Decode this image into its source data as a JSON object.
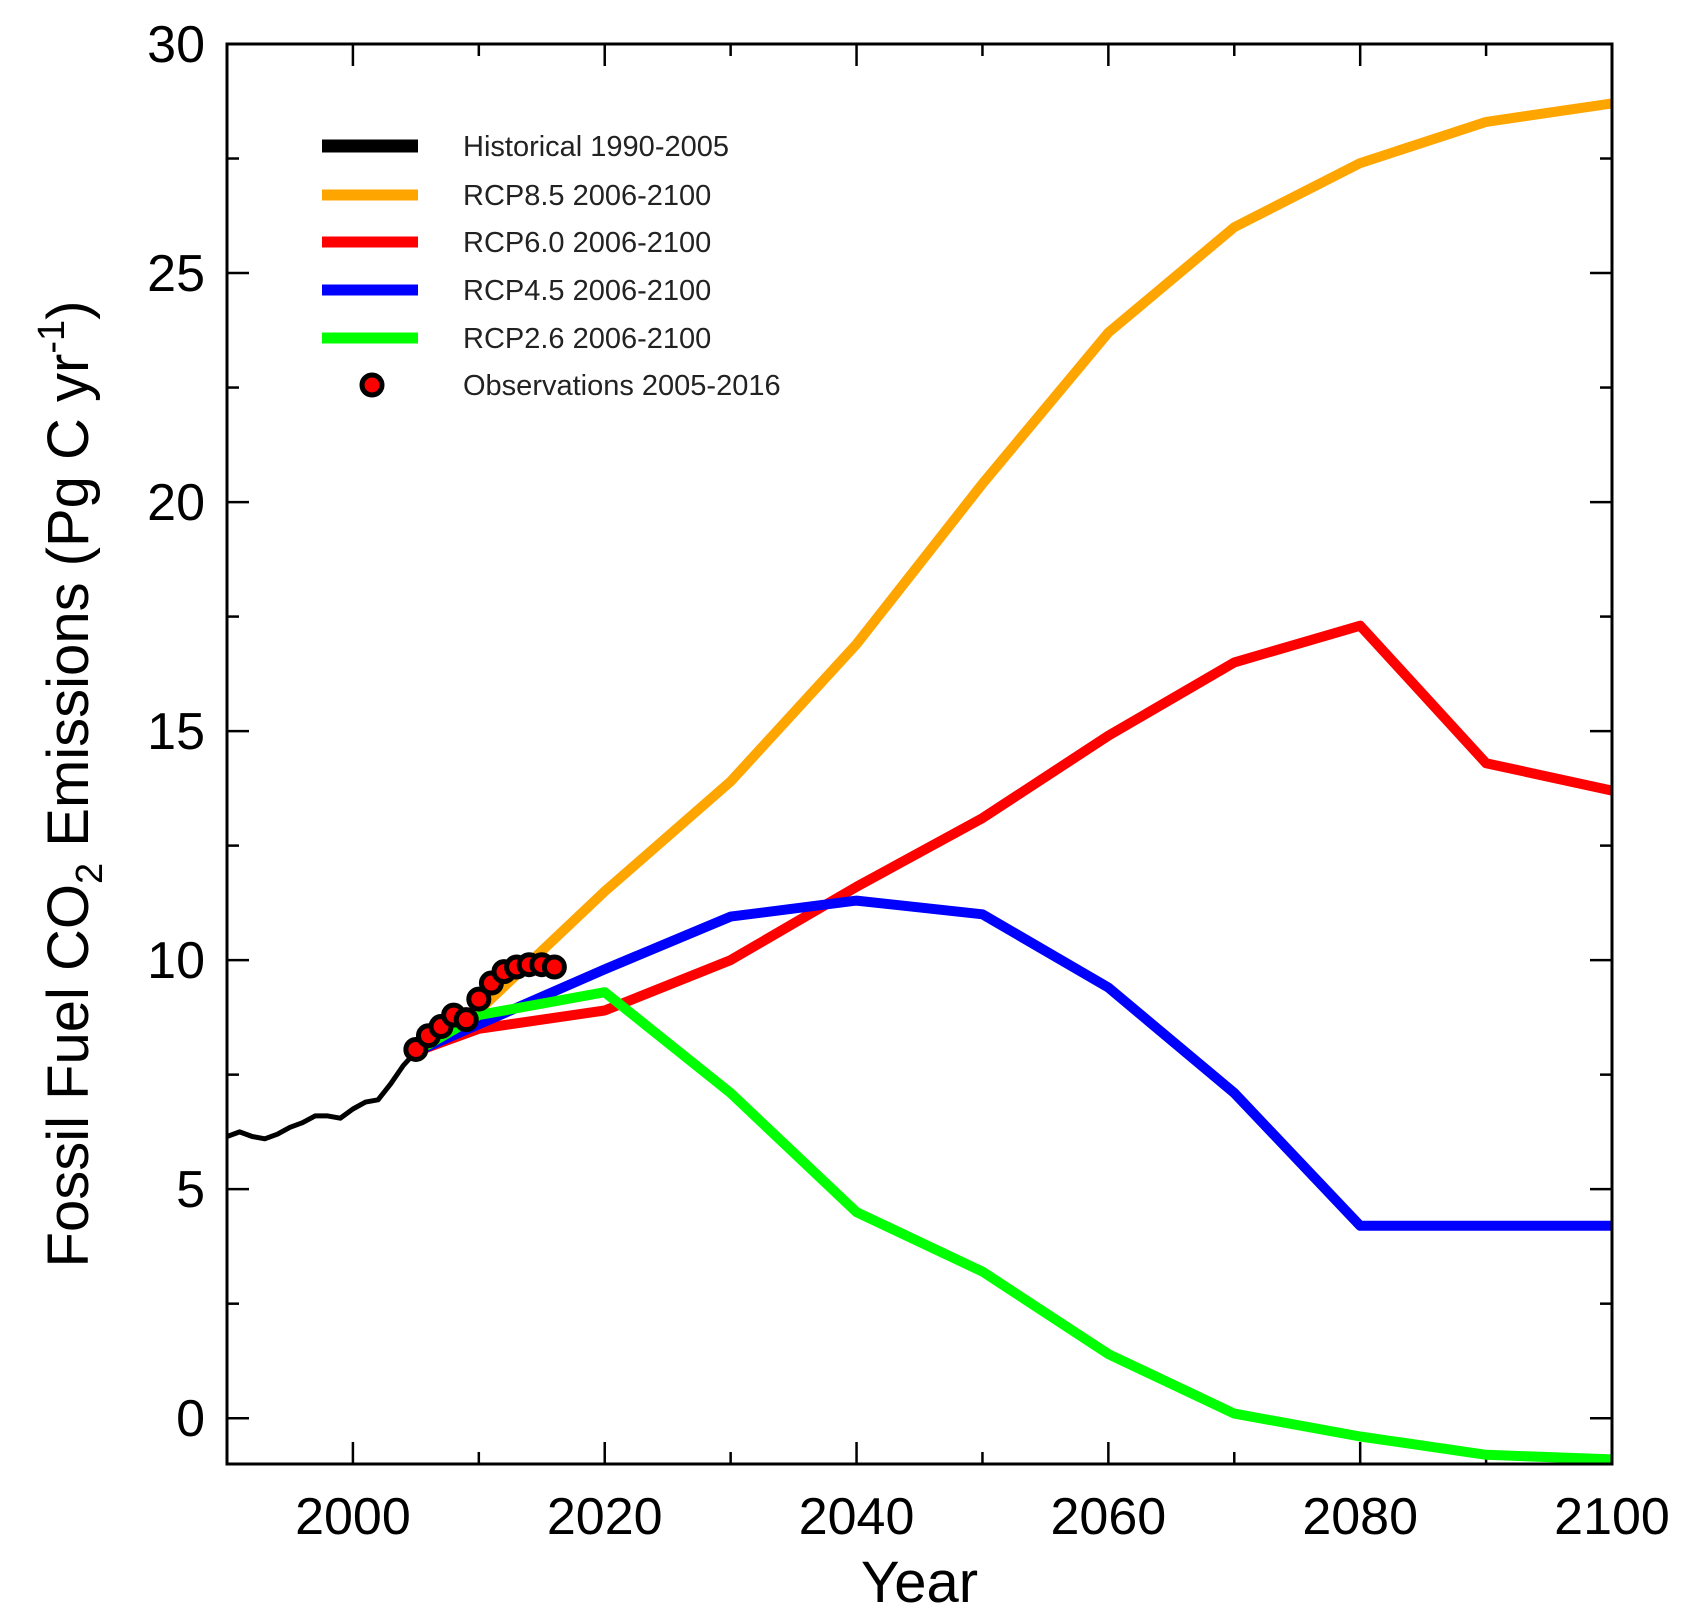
{
  "chart_data": {
    "type": "line",
    "title": "",
    "xlabel": "Year",
    "ylabel": "Fossil Fuel CO2 Emissions (Pg C yr-1)",
    "ylabel_parts": {
      "prefix": "Fossil Fuel CO",
      "subscript": "2",
      "suffix": " Emissions (Pg C yr",
      "superscript": "-1",
      "close": ")"
    },
    "xlim": [
      1990,
      2100
    ],
    "ylim": [
      -1,
      30
    ],
    "xticks": [
      2000,
      2020,
      2040,
      2060,
      2080,
      2100
    ],
    "yticks": [
      0,
      5,
      10,
      15,
      20,
      25,
      30
    ],
    "legend_position": "top-left",
    "series": [
      {
        "name": "Historical 1990-2005",
        "color": "#000000",
        "x": [
          1990,
          1991,
          1992,
          1993,
          1994,
          1995,
          1996,
          1997,
          1998,
          1999,
          2000,
          2001,
          2002,
          2003,
          2004,
          2005
        ],
        "values": [
          6.15,
          6.25,
          6.15,
          6.1,
          6.2,
          6.35,
          6.45,
          6.6,
          6.6,
          6.55,
          6.75,
          6.9,
          6.95,
          7.3,
          7.7,
          8.0
        ]
      },
      {
        "name": "RCP8.5 2006-2100",
        "color": "#ffa500",
        "x": [
          2005,
          2010,
          2020,
          2030,
          2040,
          2050,
          2060,
          2070,
          2080,
          2090,
          2100
        ],
        "values": [
          8.0,
          8.9,
          11.5,
          13.9,
          16.9,
          20.4,
          23.7,
          26.0,
          27.4,
          28.3,
          28.7
        ]
      },
      {
        "name": "RCP6.0 2006-2100",
        "color": "#ff0000",
        "x": [
          2005,
          2010,
          2020,
          2030,
          2040,
          2050,
          2060,
          2070,
          2080,
          2090,
          2100
        ],
        "values": [
          8.0,
          8.5,
          8.9,
          10.0,
          11.6,
          13.1,
          14.9,
          16.5,
          17.3,
          14.3,
          13.7
        ]
      },
      {
        "name": "RCP4.5 2006-2100",
        "color": "#0000ff",
        "x": [
          2005,
          2010,
          2020,
          2030,
          2040,
          2050,
          2060,
          2070,
          2080,
          2090,
          2100
        ],
        "values": [
          8.0,
          8.6,
          9.8,
          10.95,
          11.3,
          11.0,
          9.4,
          7.1,
          4.2,
          4.2,
          4.2
        ]
      },
      {
        "name": "RCP2.6 2006-2100",
        "color": "#00ff00",
        "x": [
          2005,
          2010,
          2020,
          2030,
          2040,
          2050,
          2060,
          2070,
          2080,
          2090,
          2100
        ],
        "values": [
          8.0,
          8.8,
          9.3,
          7.1,
          4.5,
          3.2,
          1.4,
          0.1,
          -0.4,
          -0.8,
          -0.9
        ]
      }
    ],
    "observations": {
      "name": "Observations 2005-2016",
      "color": "#ff0000",
      "edge_color": "#000000",
      "x": [
        2005,
        2006,
        2007,
        2008,
        2009,
        2010,
        2011,
        2012,
        2013,
        2014,
        2015,
        2016
      ],
      "values": [
        8.05,
        8.35,
        8.55,
        8.8,
        8.7,
        9.15,
        9.5,
        9.75,
        9.85,
        9.9,
        9.9,
        9.85
      ]
    }
  }
}
